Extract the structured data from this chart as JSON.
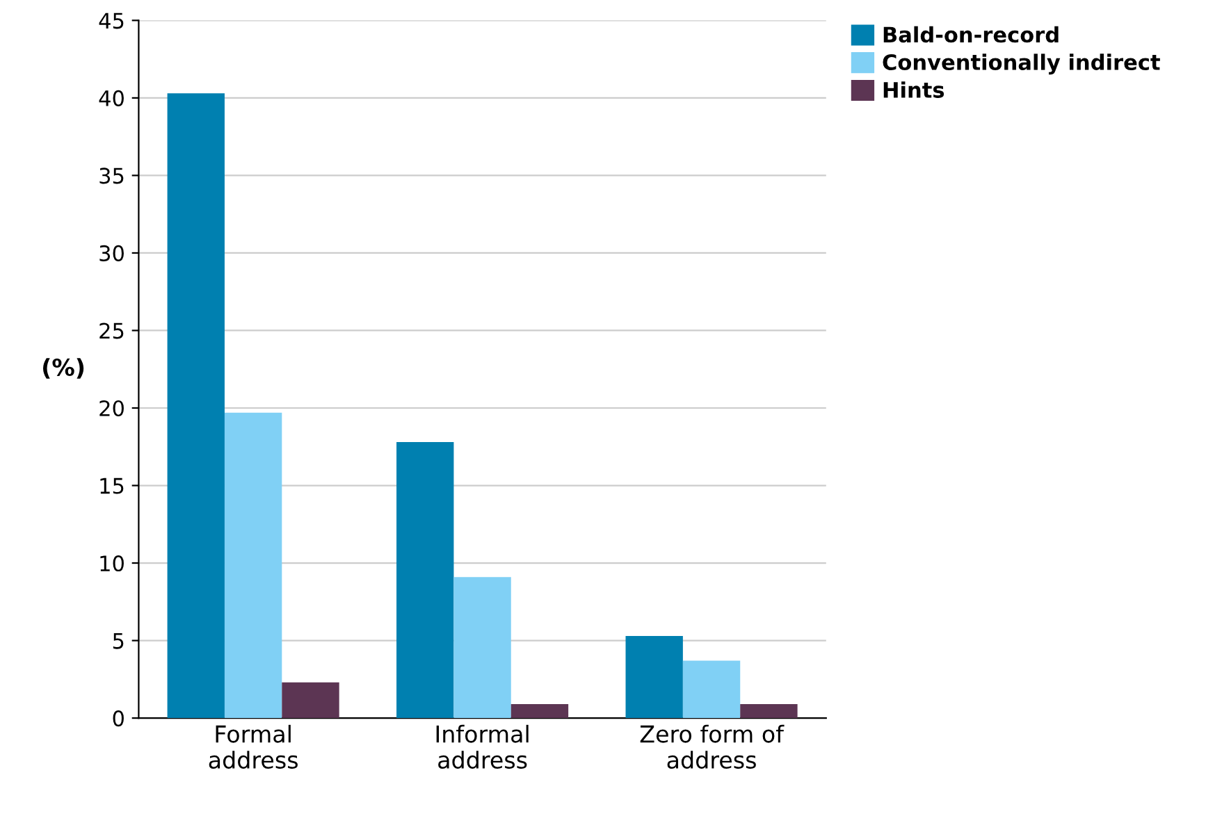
{
  "chart_data": {
    "type": "bar",
    "ylabel": "(%)",
    "categories": [
      "Formal\naddress",
      "Informal\naddress",
      "Zero form of\naddress"
    ],
    "series": [
      {
        "name": "Bald-on-record",
        "color": "#0080b0",
        "values": [
          40.3,
          17.8,
          5.3
        ]
      },
      {
        "name": "Conventionally indirect",
        "color": "#80d0f5",
        "values": [
          19.7,
          9.1,
          3.7
        ]
      },
      {
        "name": "Hints",
        "color": "#5c3553",
        "values": [
          2.3,
          0.9,
          0.9
        ]
      }
    ],
    "ylim": [
      0,
      45
    ],
    "yticks": [
      0,
      5,
      10,
      15,
      20,
      25,
      30,
      35,
      40,
      45
    ],
    "grid": "y",
    "legend": "top right"
  }
}
